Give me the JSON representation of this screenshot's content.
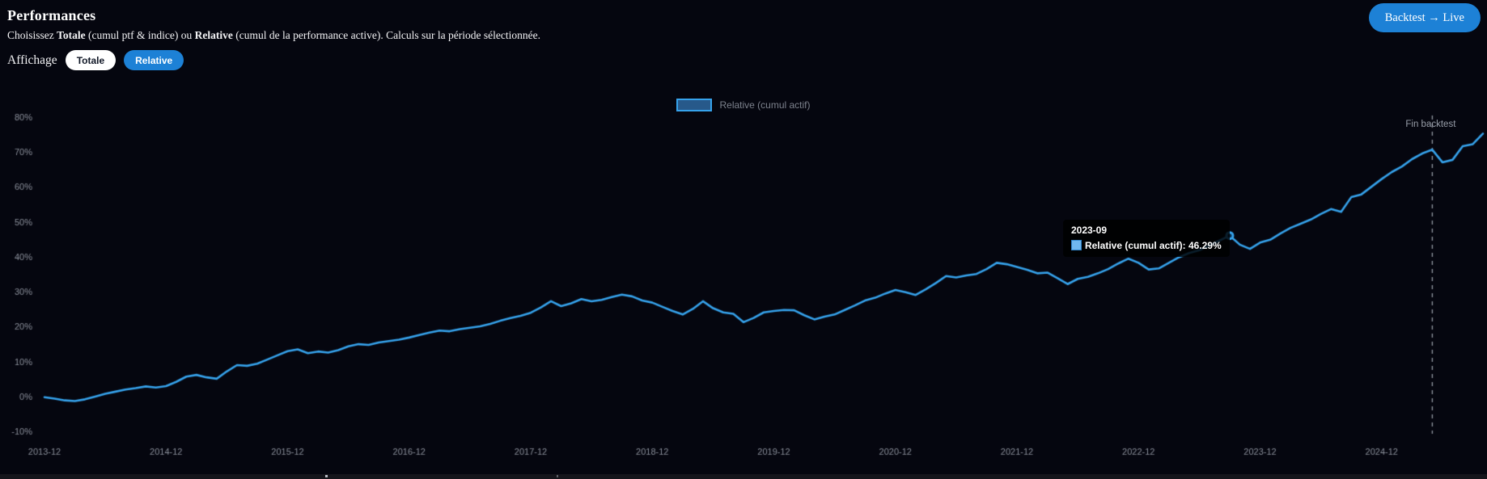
{
  "header": {
    "title": "Performances",
    "subtitle": {
      "part1": "Choisissez ",
      "bold1": "Totale",
      "part2": " (cumul ptf & indice) ou ",
      "bold2": "Relative",
      "part3": " (cumul de la performance active). Calculs sur la période sélectionnée."
    },
    "backtest_live_button": "Backtest → Live"
  },
  "controls": {
    "label": "Affichage",
    "options": [
      {
        "label": "Totale",
        "selected": false
      },
      {
        "label": "Relative",
        "selected": true
      }
    ]
  },
  "colors": {
    "background": "#05060f",
    "accent_blue": "#1d81d6",
    "line": "#36a2eb",
    "legend_swatch_fill": "#27598a",
    "axis_label": "#8b909b",
    "annotation": "#8f949e",
    "tooltip_swatch": "#70b7ef",
    "marker_fill": "#0b2a47"
  },
  "chart_data": {
    "type": "line",
    "title": "",
    "legend_label": "Relative (cumul actif)",
    "legend_position": "top-center",
    "grid": false,
    "ylim": [
      -10,
      80
    ],
    "y_ticks": [
      "80%",
      "70%",
      "60%",
      "50%",
      "40%",
      "30%",
      "20%",
      "10%",
      "0%",
      "-10%"
    ],
    "x_start": "2013-12",
    "x_frequency": "monthly",
    "x_tick_labels": [
      "2013-12",
      "2014-12",
      "2015-12",
      "2016-12",
      "2017-12",
      "2018-12",
      "2019-12",
      "2020-12",
      "2021-12",
      "2022-12",
      "2023-12",
      "2024-12"
    ],
    "x_ticks_every": 12,
    "series": [
      {
        "name": "Relative (cumul actif)",
        "values": [
          0,
          -0.4,
          -0.9,
          -1.1,
          -0.6,
          0.2,
          1,
          1.6,
          2.2,
          2.6,
          3.1,
          2.8,
          3.2,
          4.4,
          5.9,
          6.4,
          5.7,
          5.3,
          7.4,
          9.2,
          9,
          9.6,
          10.8,
          12,
          13.2,
          13.7,
          12.6,
          13.1,
          12.8,
          13.5,
          14.6,
          15.2,
          15,
          15.7,
          16.1,
          16.5,
          17.1,
          17.8,
          18.5,
          19.1,
          18.9,
          19.5,
          19.9,
          20.3,
          21,
          21.9,
          22.7,
          23.3,
          24.2,
          25.7,
          27.5,
          26.1,
          26.9,
          28.1,
          27.5,
          27.9,
          28.7,
          29.4,
          28.9,
          27.7,
          27.1,
          25.9,
          24.7,
          23.7,
          25.3,
          27.5,
          25.5,
          24.3,
          23.9,
          21.5,
          22.7,
          24.3,
          24.7,
          25,
          24.9,
          23.5,
          22.3,
          23.1,
          23.7,
          25,
          26.3,
          27.7,
          28.5,
          29.7,
          30.7,
          30.1,
          29.3,
          30.9,
          32.7,
          34.7,
          34.3,
          34.9,
          35.3,
          36.7,
          38.5,
          38.1,
          37.3,
          36.5,
          35.5,
          35.7,
          34.1,
          32.4,
          33.9,
          34.5,
          35.5,
          36.7,
          38.3,
          39.7,
          38.5,
          36.6,
          36.9,
          38.5,
          40.1,
          41.3,
          42.1,
          43.5,
          44.9,
          46.29,
          43.7,
          42.5,
          44.3,
          45.1,
          46.9,
          48.5,
          49.7,
          50.9,
          52.5,
          53.9,
          53.1,
          57.3,
          58.1,
          60.3,
          62.5,
          64.5,
          66.1,
          68.2,
          69.8,
          70.9,
          67.3,
          68,
          71.9,
          72.5,
          75.5
        ]
      }
    ],
    "tooltip": {
      "index": 117,
      "title": "2023-09",
      "label": "Relative (cumul actif)",
      "value": "46.29%",
      "text": "Relative (cumul actif): 46.29%"
    },
    "annotation": {
      "index": 137,
      "label": "Fin backtest"
    }
  }
}
